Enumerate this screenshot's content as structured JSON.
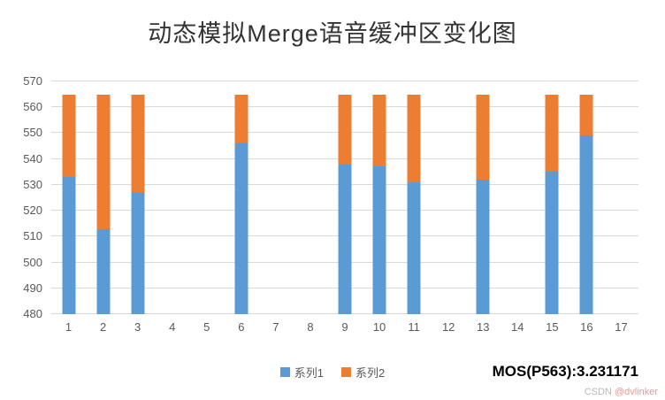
{
  "chart_data": {
    "type": "bar",
    "stacked": true,
    "title": "动态模拟Merge语音缓冲区变化图",
    "categories": [
      "1",
      "2",
      "3",
      "4",
      "5",
      "6",
      "7",
      "8",
      "9",
      "10",
      "11",
      "12",
      "13",
      "14",
      "15",
      "16",
      "17"
    ],
    "series": [
      {
        "name": "系列1",
        "color": "#5B9BD5",
        "values": [
          533,
          513,
          527,
          null,
          null,
          546,
          null,
          null,
          538,
          537,
          531,
          null,
          532,
          null,
          535,
          549,
          null
        ]
      },
      {
        "name": "系列2",
        "color": "#ED7D31",
        "values": [
          32,
          52,
          38,
          null,
          null,
          19,
          null,
          null,
          27,
          28,
          34,
          null,
          33,
          null,
          30,
          16,
          null
        ]
      }
    ],
    "stack_total": 565,
    "ylim": [
      480,
      570
    ],
    "ytick": 10,
    "grid": true,
    "legend_position": "bottom"
  },
  "annotations": {
    "mos_label": "MOS(P563):3.231171"
  },
  "watermark": {
    "prefix": "CSDN ",
    "handle": "@dvlinker"
  }
}
